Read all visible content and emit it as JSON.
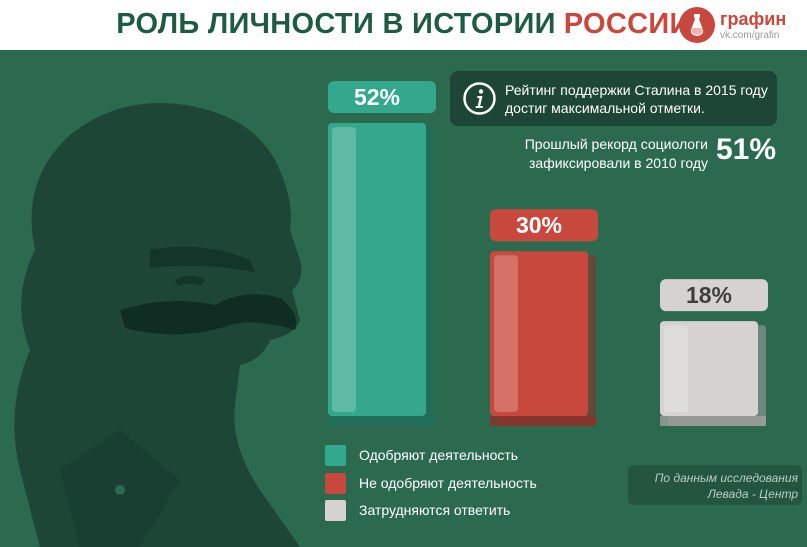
{
  "header": {
    "title_part1": "РОЛЬ ЛИЧНОСТИ В ИСТОРИИ",
    "title_part2": "РОССИИ",
    "logo_name": "графин",
    "logo_url": "vk.com/grafin"
  },
  "chart_data": {
    "type": "bar",
    "categories": [
      "Одобряют деятельность",
      "Не одобряют деятельность",
      "Затрудняются ответить"
    ],
    "values": [
      52,
      30,
      18
    ],
    "value_labels": [
      "52%",
      "30%",
      "18%"
    ],
    "unit": "%",
    "colors": [
      "#33a88c",
      "#c9483e",
      "#d7d2d2"
    ],
    "ylim": [
      0,
      52
    ],
    "grid": false,
    "legend_position": "bottom"
  },
  "callout": {
    "icon": "info-icon",
    "text": "Рейтинг поддержки Сталина в 2015 году достиг максимальной отметки."
  },
  "record": {
    "line1": "Прошлый рекорд социологи",
    "line2": "зафиксировали в 2010 году",
    "value": "51%"
  },
  "legend": [
    {
      "label": "Одобряют деятельность",
      "color": "#33a88c"
    },
    {
      "label": "Не одобряют деятельность",
      "color": "#c9483e"
    },
    {
      "label": "Затрудняются ответить",
      "color": "#d7d2d2"
    }
  ],
  "source": {
    "line1": "По данным исследования",
    "line2": "Левада - Центр"
  },
  "colors": {
    "background": "#2c6a50",
    "dark_green": "#1d4636",
    "accent_red": "#c9483e",
    "title_green": "#1f5a44"
  }
}
